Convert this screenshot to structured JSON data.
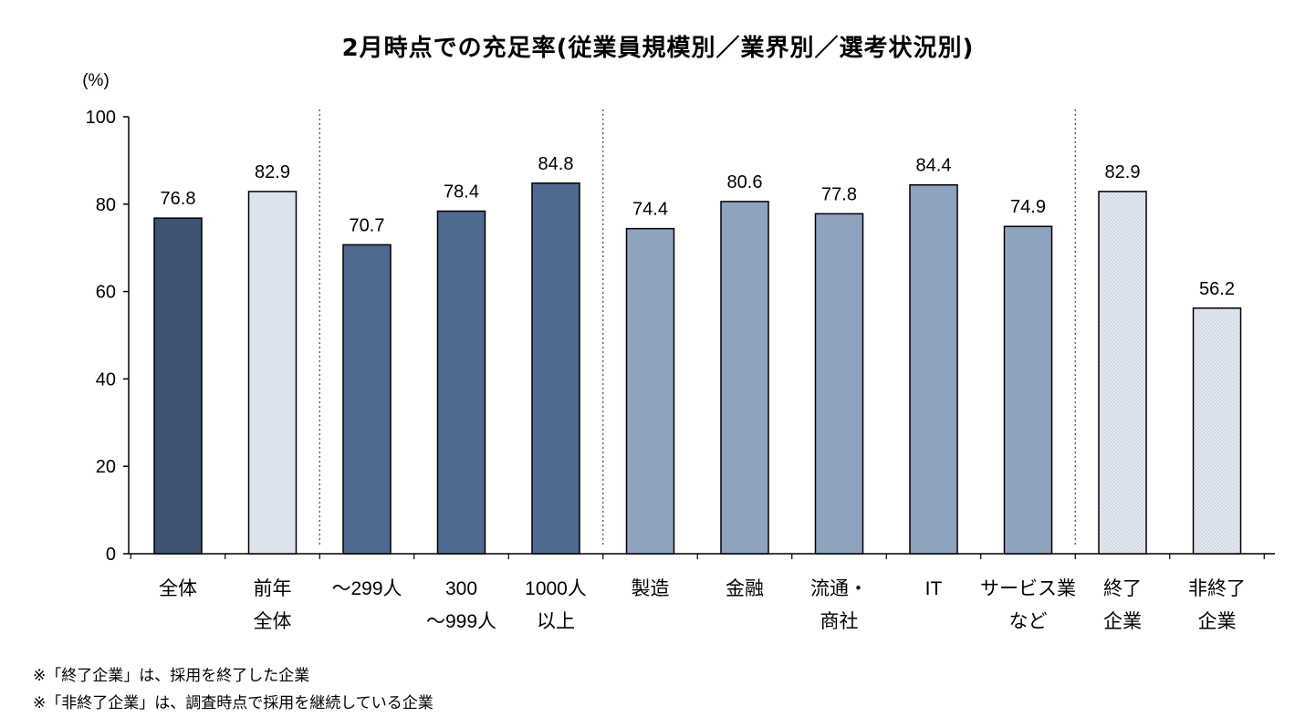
{
  "chart_data": {
    "type": "bar",
    "title": "2月時点での充足率(従業員規模別／業界別／選考状況別)",
    "ylabel": "(%)",
    "xlabel": "",
    "ylim": [
      0,
      100
    ],
    "yticks": [
      0,
      20,
      40,
      60,
      80,
      100
    ],
    "grid": false,
    "categories": [
      [
        "全体"
      ],
      [
        "前年",
        "全体"
      ],
      [
        "～299人"
      ],
      [
        "300",
        "～999人"
      ],
      [
        "1000人",
        "以上"
      ],
      [
        "製造"
      ],
      [
        "金融"
      ],
      [
        "流通・",
        "商社"
      ],
      [
        "IT"
      ],
      [
        "サービス業",
        "など"
      ],
      [
        "終了",
        "企業"
      ],
      [
        "非終了",
        "企業"
      ]
    ],
    "values": [
      76.8,
      82.9,
      70.7,
      78.4,
      84.8,
      74.4,
      80.6,
      77.8,
      84.4,
      74.9,
      82.9,
      56.2
    ],
    "value_labels": [
      "76.8",
      "82.9",
      "70.7",
      "78.4",
      "84.8",
      "74.4",
      "80.6",
      "77.8",
      "84.4",
      "74.9",
      "82.9",
      "56.2"
    ],
    "bar_colors": [
      "#3f5472",
      "#dde3ed",
      "#4f6a91",
      "#4f6a91",
      "#4f6a91",
      "#8fa3c1",
      "#8fa3c1",
      "#8fa3c1",
      "#8fa3c1",
      "#8fa3c1",
      "#dfe5ed",
      "#dfe5ed"
    ],
    "bar_patterns": [
      "solid",
      "solid",
      "solid",
      "solid",
      "solid",
      "solid",
      "solid",
      "solid",
      "solid",
      "solid",
      "dotted",
      "dotted"
    ],
    "group_separators_after": [
      1,
      4,
      9
    ]
  },
  "footnotes": [
    "※「終了企業」は、採用を終了した企業",
    "※「非終了企業」は、調査時点で採用を継続している企業"
  ]
}
